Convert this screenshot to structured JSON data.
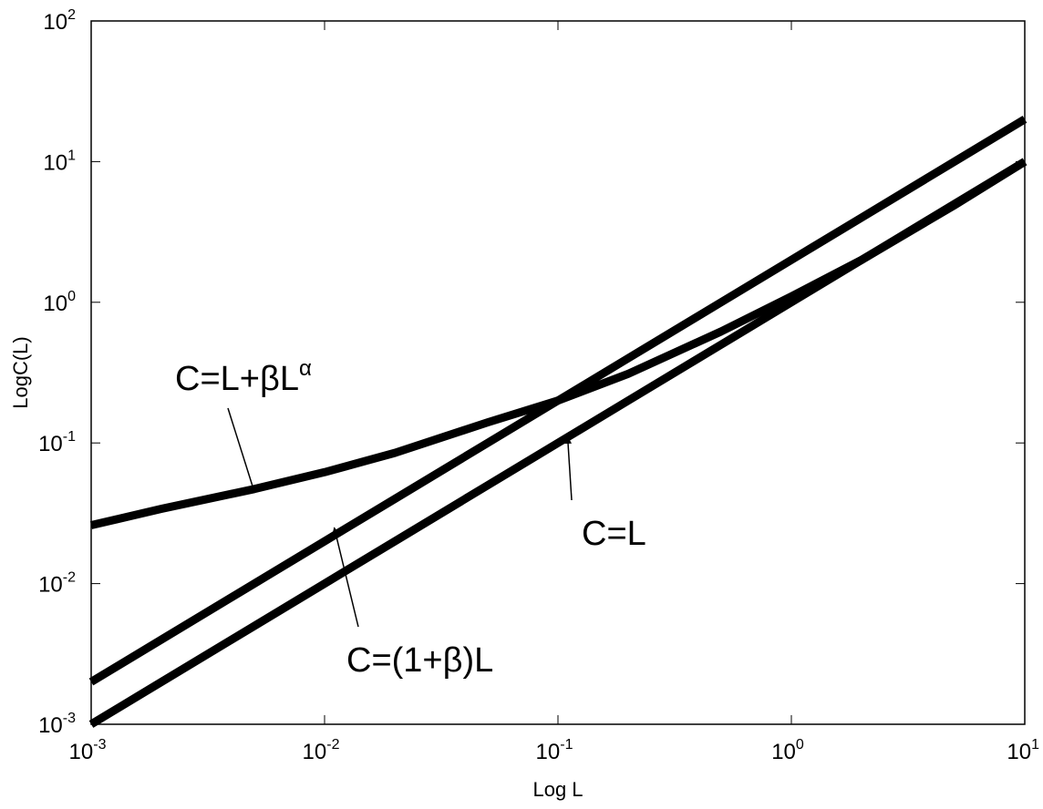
{
  "chart_data": {
    "type": "line",
    "title": "",
    "xlabel": "Log L",
    "ylabel": "LogC(L)",
    "xscale": "log",
    "yscale": "log",
    "xlim": [
      0.001,
      10
    ],
    "ylim": [
      0.001,
      100
    ],
    "grid": false,
    "legend": "none",
    "line_color": "#000000",
    "x_ticks": [
      {
        "base": "10",
        "exp": "-3",
        "value": 0.001
      },
      {
        "base": "10",
        "exp": "-2",
        "value": 0.01
      },
      {
        "base": "10",
        "exp": "-1",
        "value": 0.1
      },
      {
        "base": "10",
        "exp": "0",
        "value": 1
      },
      {
        "base": "10",
        "exp": "1",
        "value": 10
      }
    ],
    "y_ticks": [
      {
        "base": "10",
        "exp": "-3",
        "value": 0.001
      },
      {
        "base": "10",
        "exp": "-2",
        "value": 0.01
      },
      {
        "base": "10",
        "exp": "-1",
        "value": 0.1
      },
      {
        "base": "10",
        "exp": "0",
        "value": 1
      },
      {
        "base": "10",
        "exp": "1",
        "value": 10
      },
      {
        "base": "10",
        "exp": "2",
        "value": 100
      }
    ],
    "series": [
      {
        "x": [
          0.001,
          0.002,
          0.005,
          0.01,
          0.02,
          0.05,
          0.1,
          0.2,
          0.5,
          1,
          2,
          5,
          10
        ],
        "y": [
          0.001,
          0.002,
          0.005,
          0.01,
          0.02,
          0.05,
          0.1,
          0.2,
          0.5,
          1,
          2,
          5,
          10
        ]
      },
      {
        "x": [
          0.001,
          0.002,
          0.005,
          0.01,
          0.02,
          0.05,
          0.1,
          0.2,
          0.5,
          1,
          2,
          5,
          10
        ],
        "y": [
          0.002,
          0.004,
          0.01,
          0.02,
          0.04,
          0.1,
          0.2,
          0.4,
          1,
          2,
          4,
          10,
          20
        ]
      },
      {
        "x": [
          0.001,
          0.002,
          0.005,
          0.01,
          0.02,
          0.05,
          0.1,
          0.2,
          0.5,
          1,
          2,
          5,
          10
        ],
        "y": [
          0.026,
          0.034,
          0.047,
          0.062,
          0.085,
          0.14,
          0.2,
          0.31,
          0.62,
          1.1,
          2,
          4.9,
          10
        ]
      }
    ],
    "annotations": [
      {
        "text": "C=L+βL",
        "sup": "α",
        "arrow_to": [
          0.005,
          0.045
        ]
      },
      {
        "text": "C=L",
        "sup": "",
        "arrow_to": [
          0.11,
          0.11
        ]
      },
      {
        "text": "C=(1+β)L",
        "sup": "",
        "arrow_to": [
          0.011,
          0.025
        ]
      }
    ]
  }
}
